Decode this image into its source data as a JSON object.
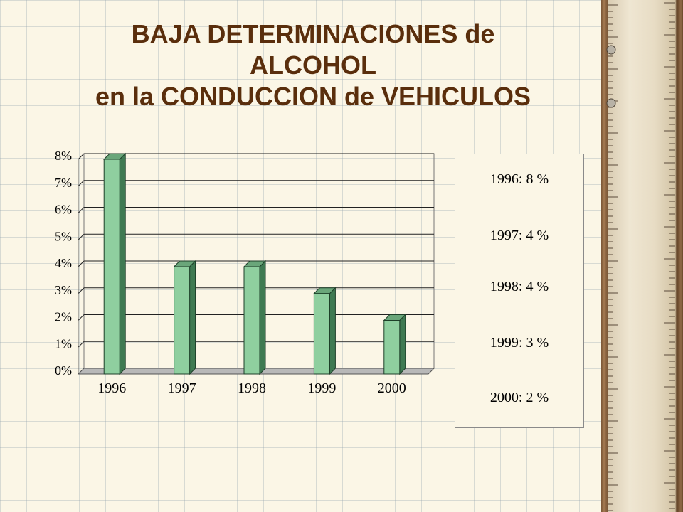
{
  "title": {
    "line1": "BAJA DETERMINACIONES de",
    "line2": "ALCOHOL",
    "line3": "en la CONDUCCION de VEHICULOS"
  },
  "colors": {
    "bar_face": "#8fcf9f",
    "bar_side": "#3f7a52",
    "bar_top": "#6aa67a",
    "title": "#5a2e0c"
  },
  "chart_data": {
    "type": "bar",
    "categories": [
      "1996",
      "1997",
      "1998",
      "1999",
      "2000"
    ],
    "values": [
      8,
      4,
      4,
      3,
      2
    ],
    "ylim": [
      0,
      8
    ],
    "yticks": [
      "0%",
      "1%",
      "2%",
      "3%",
      "4%",
      "5%",
      "6%",
      "7%",
      "8%"
    ],
    "grid": true,
    "legend": "right",
    "legend_items": [
      "1996: 8 %",
      "1997: 4 %",
      "1998: 4 %",
      "1999: 3 %",
      "2000: 2 %"
    ]
  }
}
